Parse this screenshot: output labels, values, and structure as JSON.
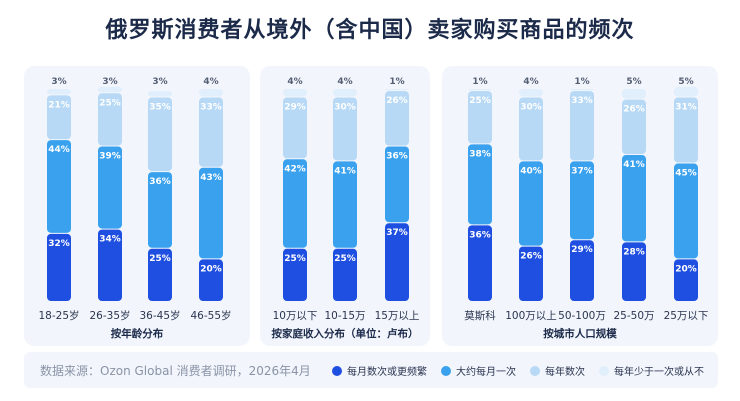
{
  "title": "俄罗斯消费者从境外（含中国）卖家购买商品的频次",
  "source": "数据来源：Ozon Global 消费者调研，2026年4月",
  "colors": {
    "series": [
      "#1f4fe0",
      "#3aa1ef",
      "#b7d9f6",
      "#e1eefb"
    ],
    "panel_bg": "#f2f6fc",
    "label_dark": "#555e72"
  },
  "legend": [
    {
      "label": "每月数次或更频繁",
      "color": "#1f4fe0"
    },
    {
      "label": "大约每月一次",
      "color": "#3aa1ef"
    },
    {
      "label": "每年数次",
      "color": "#b7d9f6"
    },
    {
      "label": "每年少于一次或从不",
      "color": "#e1eefb"
    }
  ],
  "chart_data": [
    {
      "type": "bar",
      "stacked": true,
      "title": "按年龄分布",
      "categories": [
        "18-25岁",
        "26-35岁",
        "36-45岁",
        "46-55岁"
      ],
      "series": [
        {
          "name": "每月数次或更频繁",
          "values": [
            32,
            34,
            25,
            20
          ]
        },
        {
          "name": "大约每月一次",
          "values": [
            44,
            39,
            36,
            43
          ]
        },
        {
          "name": "每年数次",
          "values": [
            21,
            25,
            35,
            33
          ]
        },
        {
          "name": "每年少于一次或从不",
          "values": [
            3,
            3,
            3,
            4
          ]
        }
      ],
      "ylim": [
        0,
        100
      ]
    },
    {
      "type": "bar",
      "stacked": true,
      "title": "按家庭收入分布（单位：卢布）",
      "categories": [
        "10万以下",
        "10-15万",
        "15万以上"
      ],
      "series": [
        {
          "name": "每月数次或更频繁",
          "values": [
            25,
            25,
            37
          ]
        },
        {
          "name": "大约每月一次",
          "values": [
            42,
            41,
            36
          ]
        },
        {
          "name": "每年数次",
          "values": [
            29,
            30,
            26
          ]
        },
        {
          "name": "每年少于一次或从不",
          "values": [
            4,
            4,
            1
          ]
        }
      ],
      "ylim": [
        0,
        100
      ]
    },
    {
      "type": "bar",
      "stacked": true,
      "title": "按城市人口规模",
      "categories": [
        "莫斯科",
        "100万以上",
        "50-100万",
        "25-50万",
        "25万以下"
      ],
      "series": [
        {
          "name": "每月数次或更频繁",
          "values": [
            36,
            26,
            29,
            28,
            20
          ]
        },
        {
          "name": "大约每月一次",
          "values": [
            38,
            40,
            37,
            41,
            45
          ]
        },
        {
          "name": "每年数次",
          "values": [
            25,
            30,
            33,
            26,
            31
          ]
        },
        {
          "name": "每年少于一次或从不",
          "values": [
            1,
            4,
            1,
            5,
            5
          ]
        }
      ],
      "ylim": [
        0,
        100
      ]
    }
  ]
}
